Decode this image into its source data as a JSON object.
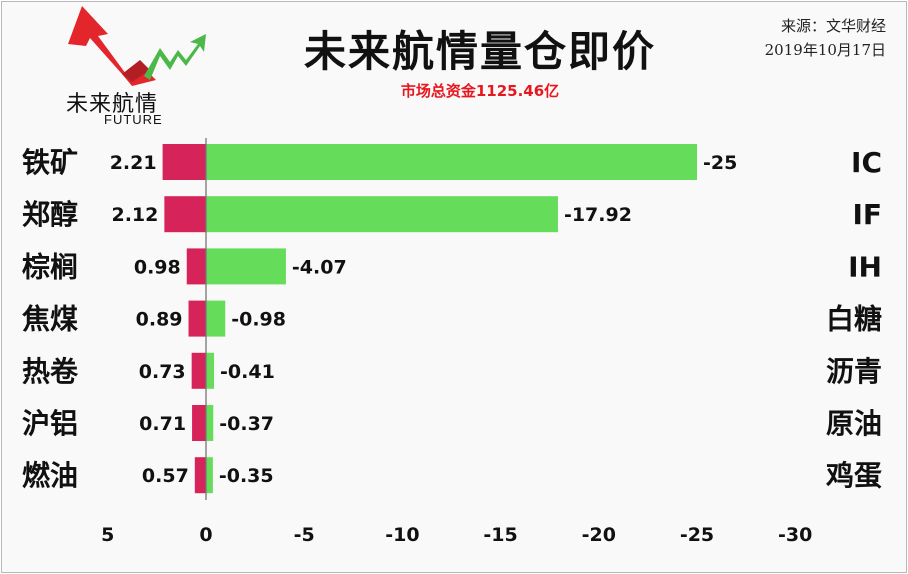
{
  "header": {
    "title": "未来航情量仓即价",
    "subtitle": "市场总资金1125.46亿",
    "source": "来源：文华财经",
    "date": "2019年10月17日",
    "logo_text": "未来航情",
    "logo_sub": "FUTURE"
  },
  "colors": {
    "positive_bar": "#d6245a",
    "negative_bar": "#66dd5a",
    "axis": "#777777"
  },
  "chart_data": {
    "type": "bar",
    "orientation": "horizontal",
    "title": "未来航情量仓即价",
    "subtitle": "市场总资金1125.46亿",
    "xlim": [
      5,
      -30
    ],
    "xticks": [
      5,
      0,
      -5,
      -10,
      -15,
      -20,
      -25,
      -30
    ],
    "rows": [
      {
        "left_label": "铁矿",
        "left_value": 2.21,
        "right_value": -25,
        "right_label": "IC",
        "left_text": "2.21",
        "right_text": "-25"
      },
      {
        "left_label": "郑醇",
        "left_value": 2.12,
        "right_value": -17.92,
        "right_label": "IF",
        "left_text": "2.12",
        "right_text": "-17.92"
      },
      {
        "left_label": "棕榈",
        "left_value": 0.98,
        "right_value": -4.07,
        "right_label": "IH",
        "left_text": "0.98",
        "right_text": "-4.07"
      },
      {
        "left_label": "焦煤",
        "left_value": 0.89,
        "right_value": -0.98,
        "right_label": "白糖",
        "left_text": "0.89",
        "right_text": "-0.98"
      },
      {
        "left_label": "热卷",
        "left_value": 0.73,
        "right_value": -0.41,
        "right_label": "沥青",
        "left_text": "0.73",
        "right_text": "-0.41"
      },
      {
        "left_label": "沪铝",
        "left_value": 0.71,
        "right_value": -0.37,
        "right_label": "原油",
        "left_text": "0.71",
        "right_text": "-0.37"
      },
      {
        "left_label": "燃油",
        "left_value": 0.57,
        "right_value": -0.35,
        "right_label": "鸡蛋",
        "left_text": "0.57",
        "right_text": "-0.35"
      }
    ]
  }
}
